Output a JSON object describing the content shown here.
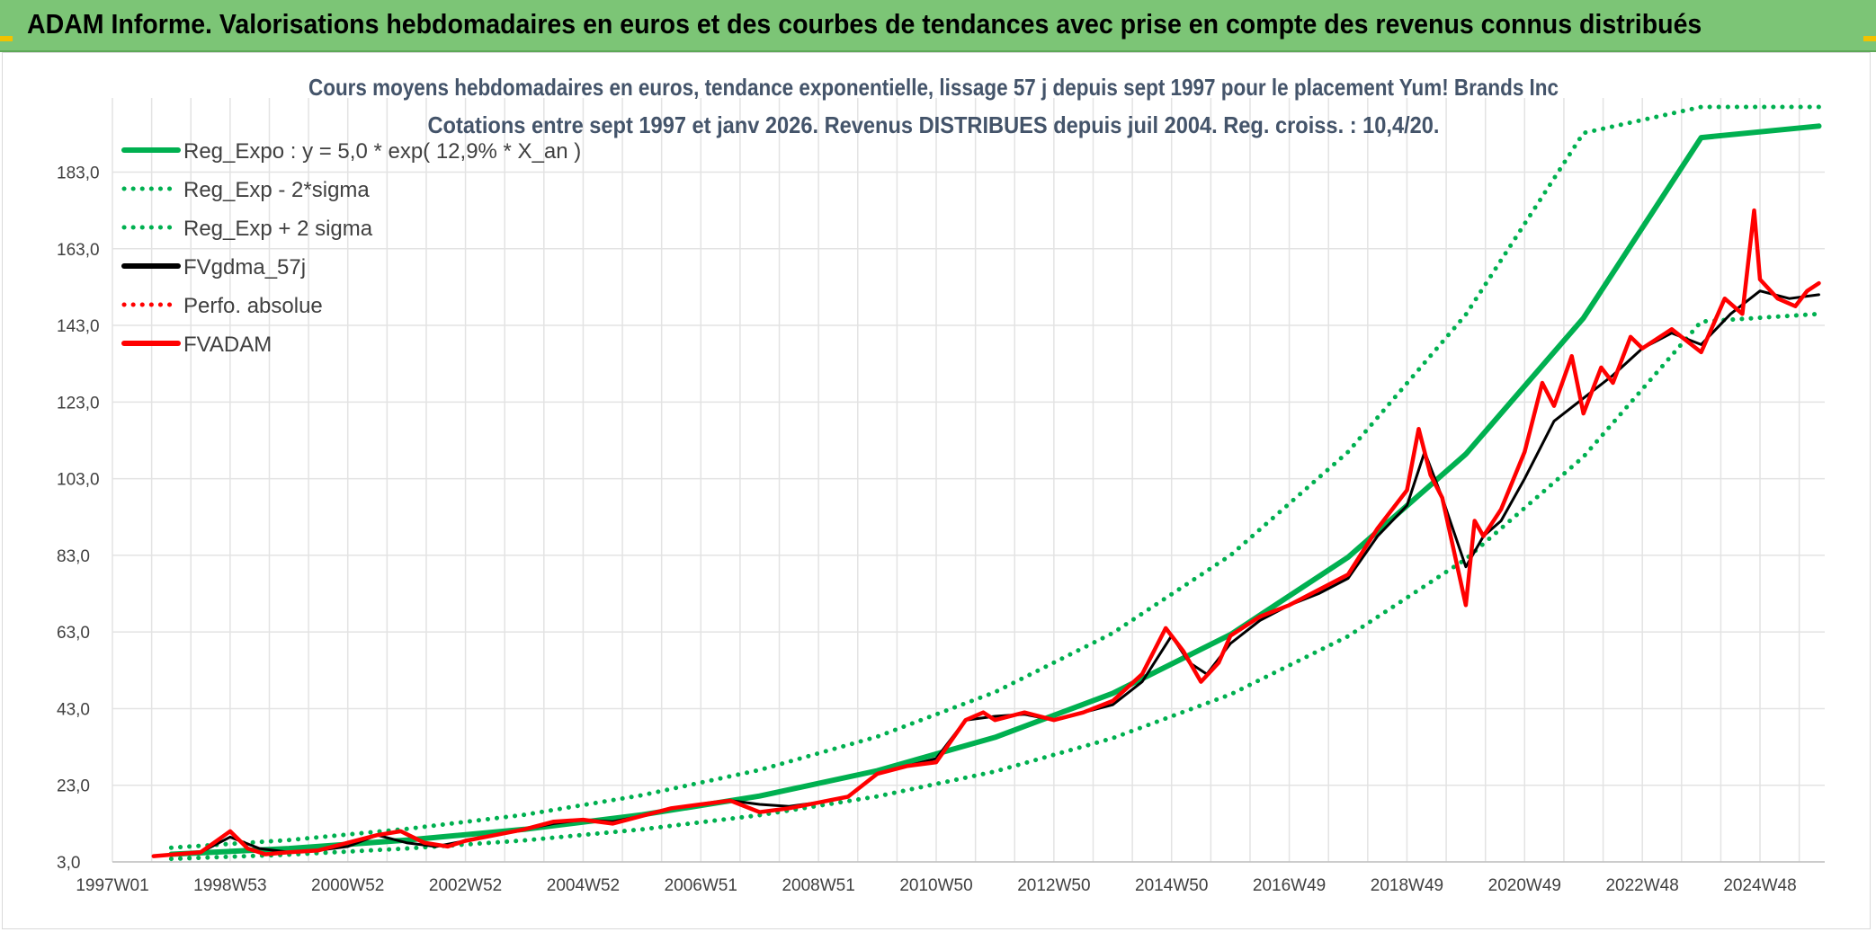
{
  "header": {
    "title": "ADAM Informe. Valorisations hebdomadaires en euros et des courbes de tendances avec prise en compte des revenus connus distribués",
    "background_color": "#7cc576",
    "corner_color": "#f2c200"
  },
  "chart_data": {
    "type": "line",
    "title": "Cours moyens hebdomadaires en euros, tendance exponentielle, lissage 57 j depuis sept 1997 pour le placement Yum! Brands Inc",
    "subtitle": "Cotations entre sept 1997 et janv 2026. Revenus DISTRIBUES depuis juil 2004. Reg. croiss. : 10,4/20.",
    "xlabel": "",
    "ylabel": "",
    "xlim": [
      1997.0,
      2026.1
    ],
    "ylim": [
      3.0,
      200.0
    ],
    "grid": true,
    "legend_position": "top-left",
    "y_ticks": [
      "3,0",
      "23,0",
      "43,0",
      "63,0",
      "83,0",
      "103,0",
      "123,0",
      "143,0",
      "163,0",
      "183,0"
    ],
    "y_tick_values": [
      3,
      23,
      43,
      63,
      83,
      103,
      123,
      143,
      163,
      183
    ],
    "x_ticks": [
      "1997W01",
      "1998W53",
      "2000W52",
      "2002W52",
      "2004W52",
      "2006W51",
      "2008W51",
      "2010W50",
      "2012W50",
      "2014W50",
      "2016W49",
      "2018W49",
      "2020W49",
      "2022W48",
      "2024W48"
    ],
    "x_tick_values": [
      1997.0,
      1999.0,
      2001.0,
      2003.0,
      2005.0,
      2007.0,
      2009.0,
      2011.0,
      2013.0,
      2015.0,
      2017.0,
      2019.0,
      2021.0,
      2023.0,
      2025.0
    ],
    "series": [
      {
        "name": "Reg_Expo : y = 5,0 * exp( 12,9% *  X_an )",
        "color": "#00b050",
        "style": "solid",
        "x": [
          1998.0,
          2000.0,
          2002.0,
          2004.0,
          2006.0,
          2008.0,
          2010.0,
          2012.0,
          2014.0,
          2016.0,
          2018.0,
          2020.0,
          2022.0,
          2024.0,
          2026.0
        ],
        "values": [
          5.0,
          6.5,
          8.7,
          11.5,
          15.3,
          20.2,
          26.8,
          35.5,
          47.0,
          62.3,
          82.5,
          109.4,
          144.9,
          192.0,
          195.0
        ]
      },
      {
        "name": "Reg_Exp - 2*sigma",
        "color": "#00b050",
        "style": "dotted",
        "x": [
          1998.0,
          2000.0,
          2002.0,
          2004.0,
          2006.0,
          2008.0,
          2010.0,
          2012.0,
          2014.0,
          2016.0,
          2018.0,
          2020.0,
          2022.0,
          2024.0,
          2026.0
        ],
        "values": [
          3.8,
          4.9,
          6.5,
          8.6,
          11.5,
          15.2,
          20.1,
          26.6,
          35.3,
          46.7,
          61.9,
          82.0,
          108.7,
          144.0,
          146.0
        ]
      },
      {
        "name": "Reg_Exp + 2 sigma",
        "color": "#00b050",
        "style": "dotted",
        "x": [
          1998.0,
          2000.0,
          2002.0,
          2004.0,
          2006.0,
          2008.0,
          2010.0,
          2012.0,
          2014.0,
          2016.0,
          2018.0,
          2020.0,
          2022.0,
          2024.0,
          2026.0
        ],
        "values": [
          6.7,
          8.7,
          11.6,
          15.3,
          20.4,
          27.0,
          35.7,
          47.3,
          62.7,
          83.0,
          110.0,
          145.8,
          193.2,
          200.0,
          200.0
        ]
      },
      {
        "name": "FVgdma_57j",
        "color": "#000000",
        "style": "solid",
        "x": [
          1997.7,
          1998.5,
          1999.0,
          1999.5,
          2000.0,
          2000.5,
          2001.0,
          2001.5,
          2002.0,
          2002.5,
          2003.0,
          2003.5,
          2004.0,
          2004.5,
          2005.0,
          2005.5,
          2006.0,
          2006.5,
          2007.0,
          2007.5,
          2008.0,
          2008.5,
          2009.0,
          2009.5,
          2010.0,
          2010.5,
          2011.0,
          2011.5,
          2012.0,
          2012.5,
          2013.0,
          2013.5,
          2014.0,
          2014.5,
          2015.0,
          2015.3,
          2015.6,
          2016.0,
          2016.5,
          2017.0,
          2017.5,
          2018.0,
          2018.5,
          2019.0,
          2019.3,
          2019.6,
          2020.0,
          2020.3,
          2020.6,
          2021.0,
          2021.5,
          2022.0,
          2022.5,
          2023.0,
          2023.5,
          2024.0,
          2024.5,
          2025.0,
          2025.5,
          2026.0
        ],
        "values": [
          4.5,
          5.5,
          9.5,
          6.5,
          5.5,
          6.0,
          7.0,
          10.0,
          8.0,
          7.0,
          8.5,
          10.0,
          11.5,
          13.0,
          14.0,
          13.5,
          15.0,
          17.0,
          18.0,
          19.0,
          18.0,
          17.5,
          18.5,
          20.0,
          26.0,
          28.0,
          30.0,
          40.0,
          41.0,
          41.5,
          40.0,
          42.0,
          44.0,
          50.0,
          62.0,
          55.0,
          52.0,
          60.0,
          66.0,
          70.0,
          73.0,
          77.0,
          88.0,
          96.0,
          110.0,
          98.0,
          80.0,
          88.0,
          92.0,
          103.0,
          118.0,
          124.0,
          130.0,
          137.0,
          141.0,
          138.0,
          146.0,
          152.0,
          150.0,
          151.0
        ]
      },
      {
        "name": "Perfo. absolue",
        "color": "#ff0000",
        "style": "dotted",
        "x": [],
        "values": []
      },
      {
        "name": "FVADAM",
        "color": "#ff0000",
        "style": "solid",
        "x": [
          1997.7,
          1998.5,
          1999.0,
          1999.3,
          1999.6,
          2000.0,
          2000.5,
          2001.0,
          2001.5,
          2001.9,
          2002.3,
          2002.7,
          2003.0,
          2003.5,
          2004.0,
          2004.5,
          2005.0,
          2005.5,
          2006.0,
          2006.5,
          2007.0,
          2007.5,
          2008.0,
          2008.5,
          2009.0,
          2009.5,
          2010.0,
          2010.5,
          2011.0,
          2011.5,
          2011.8,
          2012.0,
          2012.5,
          2013.0,
          2013.5,
          2014.0,
          2014.5,
          2014.9,
          2015.2,
          2015.5,
          2015.8,
          2016.0,
          2016.5,
          2017.0,
          2017.5,
          2018.0,
          2018.5,
          2019.0,
          2019.2,
          2019.4,
          2019.6,
          2020.0,
          2020.15,
          2020.3,
          2020.6,
          2021.0,
          2021.3,
          2021.5,
          2021.8,
          2022.0,
          2022.3,
          2022.5,
          2022.8,
          2023.0,
          2023.5,
          2024.0,
          2024.4,
          2024.7,
          2024.9,
          2025.0,
          2025.3,
          2025.6,
          2025.8,
          2026.0
        ],
        "values": [
          4.5,
          5.5,
          11.0,
          6.5,
          5.0,
          5.5,
          6.0,
          8.0,
          10.0,
          11.0,
          8.0,
          7.0,
          8.5,
          10.0,
          11.5,
          13.5,
          14.0,
          13.0,
          15.0,
          17.0,
          18.0,
          19.0,
          16.0,
          17.0,
          18.5,
          20.0,
          26.0,
          28.0,
          29.0,
          40.0,
          42.0,
          40.0,
          42.0,
          40.0,
          42.0,
          45.0,
          52.0,
          64.0,
          58.0,
          50.0,
          55.0,
          62.0,
          67.0,
          70.0,
          74.0,
          78.0,
          90.0,
          100.0,
          116.0,
          104.0,
          98.0,
          70.0,
          92.0,
          88.0,
          95.0,
          110.0,
          128.0,
          122.0,
          135.0,
          120.0,
          132.0,
          128.0,
          140.0,
          137.0,
          142.0,
          136.0,
          150.0,
          146.0,
          173.0,
          155.0,
          150.0,
          148.0,
          152.0,
          154.0
        ]
      }
    ]
  }
}
